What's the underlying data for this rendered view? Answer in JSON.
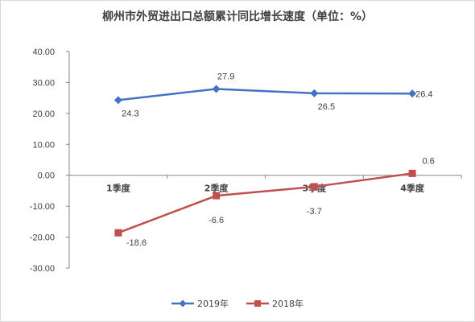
{
  "chart_data": {
    "type": "line",
    "title": "柳州市外贸进出口总额累计同比增长速度（单位：%）",
    "categories": [
      "1季度",
      "2季度",
      "3季度",
      "4季度"
    ],
    "ylim": [
      -30,
      40
    ],
    "yticks": [
      "40.00",
      "30.00",
      "20.00",
      "10.00",
      "0.00",
      "-10.00",
      "-20.00",
      "-30.00"
    ],
    "grid": false,
    "legend_position": "bottom",
    "series": [
      {
        "name": "2019年",
        "values": [
          24.3,
          27.9,
          26.5,
          26.4
        ],
        "labels": [
          "24.3",
          "27.9",
          "26.5",
          "26.4"
        ],
        "color": "#4472C4",
        "marker": "diamond"
      },
      {
        "name": "2018年",
        "values": [
          -18.6,
          -6.6,
          -3.7,
          0.6
        ],
        "labels": [
          "-18.6",
          "-6.6",
          "-3.7",
          "0.6"
        ],
        "color": "#C0504D",
        "marker": "square"
      }
    ]
  }
}
